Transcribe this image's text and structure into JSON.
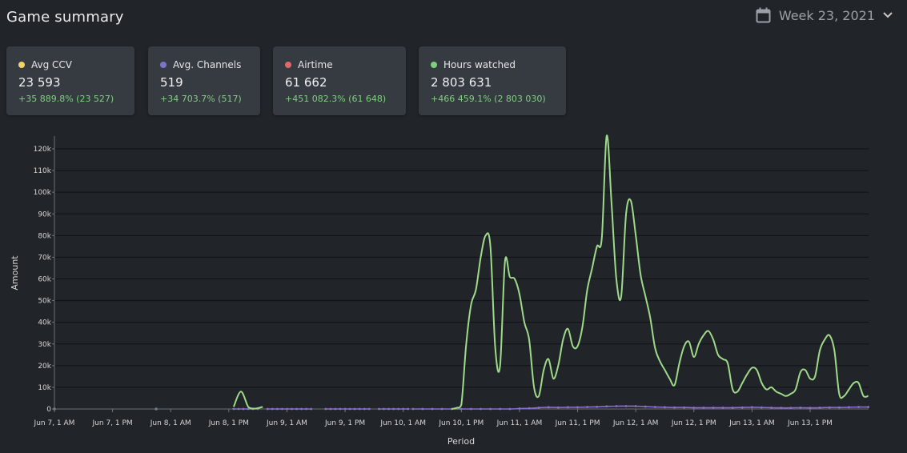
{
  "header": {
    "title": "Game summary",
    "week_label": "Week 23, 2021",
    "calendar_icon": "calendar-icon",
    "chevron_icon": "chevron-down-icon"
  },
  "cards": [
    {
      "label": "Avg CCV",
      "value": "23 593",
      "change": "+35 889.8% (23 527)",
      "color": "#f2d36b"
    },
    {
      "label": "Avg. Channels",
      "value": "519",
      "change": "+34 703.7% (517)",
      "color": "#7b73c9"
    },
    {
      "label": "Airtime",
      "value": "61 662",
      "change": "+451 082.3% (61 648)",
      "color": "#e0686a"
    },
    {
      "label": "Hours watched",
      "value": "2 803 631",
      "change": "+466 459.1% (2 803 030)",
      "color": "#7ed07e"
    }
  ],
  "colors": {
    "hours_watched": "#9fd98a",
    "channels": "#8a6fcf",
    "grid": "#0f1215",
    "change_positive": "#7ed07e"
  },
  "chart_data": {
    "type": "line",
    "xlabel": "Period",
    "ylabel": "Amount",
    "ylim": [
      0,
      125000
    ],
    "yticks": [
      "0",
      "10k",
      "20k",
      "30k",
      "40k",
      "50k",
      "60k",
      "70k",
      "80k",
      "90k",
      "100k",
      "110k",
      "120k"
    ],
    "ytick_values": [
      0,
      10000,
      20000,
      30000,
      40000,
      50000,
      60000,
      70000,
      80000,
      90000,
      100000,
      110000,
      120000
    ],
    "xticks": [
      "Jun 7, 1 AM",
      "Jun 7, 1 PM",
      "Jun 8, 1 AM",
      "Jun 8, 1 PM",
      "Jun 9, 1 AM",
      "Jun 9, 1 PM",
      "Jun 10, 1 AM",
      "Jun 10, 1 PM",
      "Jun 11, 1 AM",
      "Jun 11, 1 PM",
      "Jun 12, 1 AM",
      "Jun 12, 1 PM",
      "Jun 13, 1 AM",
      "Jun 13, 1 PM"
    ],
    "xtick_hours": [
      0,
      12,
      24,
      36,
      48,
      60,
      72,
      84,
      96,
      108,
      120,
      132,
      144,
      156
    ],
    "x_range_hours": [
      0,
      167
    ],
    "grid": true,
    "series": [
      {
        "name": "Hours watched",
        "segments": [
          [
            [
              37,
              1000
            ],
            [
              38.5,
              8000
            ],
            [
              40,
              1000
            ],
            [
              41,
              200
            ],
            [
              42,
              400
            ],
            [
              43,
              1000
            ]
          ],
          [
            [
              82,
              0
            ],
            [
              83,
              500
            ],
            [
              84,
              2000
            ],
            [
              85,
              30000
            ],
            [
              86,
              48000
            ],
            [
              87,
              55000
            ],
            [
              88,
              70000
            ],
            [
              89,
              80000
            ],
            [
              90,
              75000
            ],
            [
              91,
              28000
            ],
            [
              92,
              20000
            ],
            [
              93,
              68000
            ],
            [
              94,
              61000
            ],
            [
              95,
              60000
            ],
            [
              96,
              53000
            ],
            [
              97,
              40000
            ],
            [
              98,
              32000
            ],
            [
              99,
              10000
            ],
            [
              100,
              6000
            ],
            [
              101,
              18000
            ],
            [
              102,
              23000
            ],
            [
              103,
              14000
            ],
            [
              104,
              20000
            ],
            [
              105,
              32000
            ],
            [
              106,
              37000
            ],
            [
              107,
              29000
            ],
            [
              108,
              29000
            ],
            [
              109,
              38000
            ],
            [
              110,
              55000
            ],
            [
              111,
              65000
            ],
            [
              112,
              75000
            ],
            [
              113,
              79000
            ],
            [
              114,
              126000
            ],
            [
              115,
              95000
            ],
            [
              116,
              60000
            ],
            [
              117,
              52000
            ],
            [
              118,
              90000
            ],
            [
              119,
              96000
            ],
            [
              120,
              80000
            ],
            [
              121,
              62000
            ],
            [
              122,
              52000
            ],
            [
              123,
              42000
            ],
            [
              124,
              28000
            ],
            [
              125,
              22000
            ],
            [
              126,
              18000
            ],
            [
              127,
              14000
            ],
            [
              128,
              11000
            ],
            [
              129,
              21000
            ],
            [
              130,
              29000
            ],
            [
              131,
              31000
            ],
            [
              132,
              24000
            ],
            [
              133,
              30000
            ],
            [
              134,
              34000
            ],
            [
              135,
              36000
            ],
            [
              136,
              32000
            ],
            [
              137,
              25000
            ],
            [
              138,
              23000
            ],
            [
              139,
              21000
            ],
            [
              140,
              9000
            ],
            [
              141,
              8000
            ],
            [
              142,
              12000
            ],
            [
              143,
              16000
            ],
            [
              144,
              19000
            ],
            [
              145,
              18000
            ],
            [
              146,
              12000
            ],
            [
              147,
              9000
            ],
            [
              148,
              10000
            ],
            [
              149,
              8000
            ],
            [
              150,
              7000
            ],
            [
              151,
              6000
            ],
            [
              152,
              7000
            ],
            [
              153,
              9000
            ],
            [
              154,
              17000
            ],
            [
              155,
              18000
            ],
            [
              156,
              14000
            ],
            [
              157,
              15000
            ],
            [
              158,
              27000
            ],
            [
              159,
              32000
            ],
            [
              160,
              34000
            ],
            [
              161,
              27000
            ],
            [
              162,
              7000
            ],
            [
              163,
              6000
            ],
            [
              164,
              9000
            ],
            [
              165,
              12000
            ],
            [
              166,
              12000
            ],
            [
              167,
              6000
            ],
            [
              168,
              6000
            ]
          ]
        ]
      },
      {
        "name": "Avg. Channels",
        "segments": [
          [
            [
              37,
              0
            ],
            [
              38,
              0
            ],
            [
              39,
              0
            ],
            [
              40,
              0
            ],
            [
              41,
              0
            ],
            [
              42,
              0
            ]
          ],
          [
            [
              44,
              0
            ],
            [
              45,
              0
            ],
            [
              46,
              0
            ],
            [
              47,
              0
            ],
            [
              48,
              0
            ],
            [
              49,
              0
            ],
            [
              50,
              0
            ],
            [
              51,
              0
            ],
            [
              52,
              0
            ],
            [
              53,
              0
            ]
          ],
          [
            [
              56,
              0
            ],
            [
              57,
              0
            ],
            [
              58,
              0
            ],
            [
              59,
              0
            ],
            [
              60,
              0
            ],
            [
              61,
              0
            ],
            [
              62,
              0
            ],
            [
              63,
              0
            ],
            [
              64,
              0
            ],
            [
              65,
              0
            ]
          ],
          [
            [
              67,
              0
            ],
            [
              68,
              0
            ],
            [
              69,
              0
            ],
            [
              70,
              0
            ],
            [
              71,
              0
            ],
            [
              72,
              0
            ],
            [
              73,
              0
            ]
          ],
          [
            [
              74,
              0
            ],
            [
              76,
              0
            ],
            [
              78,
              0
            ],
            [
              80,
              0
            ],
            [
              82,
              0
            ],
            [
              84,
              0
            ],
            [
              86,
              0
            ],
            [
              88,
              0
            ],
            [
              90,
              0
            ],
            [
              92,
              0
            ],
            [
              94,
              0
            ],
            [
              96,
              200
            ],
            [
              98,
              300
            ],
            [
              100,
              600
            ],
            [
              102,
              800
            ],
            [
              104,
              700
            ],
            [
              106,
              800
            ],
            [
              108,
              800
            ],
            [
              110,
              900
            ],
            [
              112,
              1000
            ],
            [
              114,
              1200
            ],
            [
              116,
              1300
            ],
            [
              118,
              1300
            ],
            [
              120,
              1300
            ],
            [
              122,
              1100
            ],
            [
              124,
              900
            ],
            [
              126,
              800
            ],
            [
              128,
              700
            ],
            [
              130,
              700
            ],
            [
              132,
              600
            ],
            [
              134,
              600
            ],
            [
              136,
              600
            ],
            [
              138,
              600
            ],
            [
              140,
              600
            ],
            [
              142,
              700
            ],
            [
              144,
              800
            ],
            [
              146,
              700
            ],
            [
              148,
              600
            ],
            [
              150,
              500
            ],
            [
              152,
              500
            ],
            [
              154,
              600
            ],
            [
              156,
              500
            ],
            [
              158,
              600
            ],
            [
              160,
              700
            ],
            [
              162,
              700
            ],
            [
              164,
              800
            ],
            [
              166,
              900
            ],
            [
              168,
              900
            ]
          ]
        ]
      }
    ],
    "dots_at_zero_hours": [
      0,
      21
    ]
  }
}
